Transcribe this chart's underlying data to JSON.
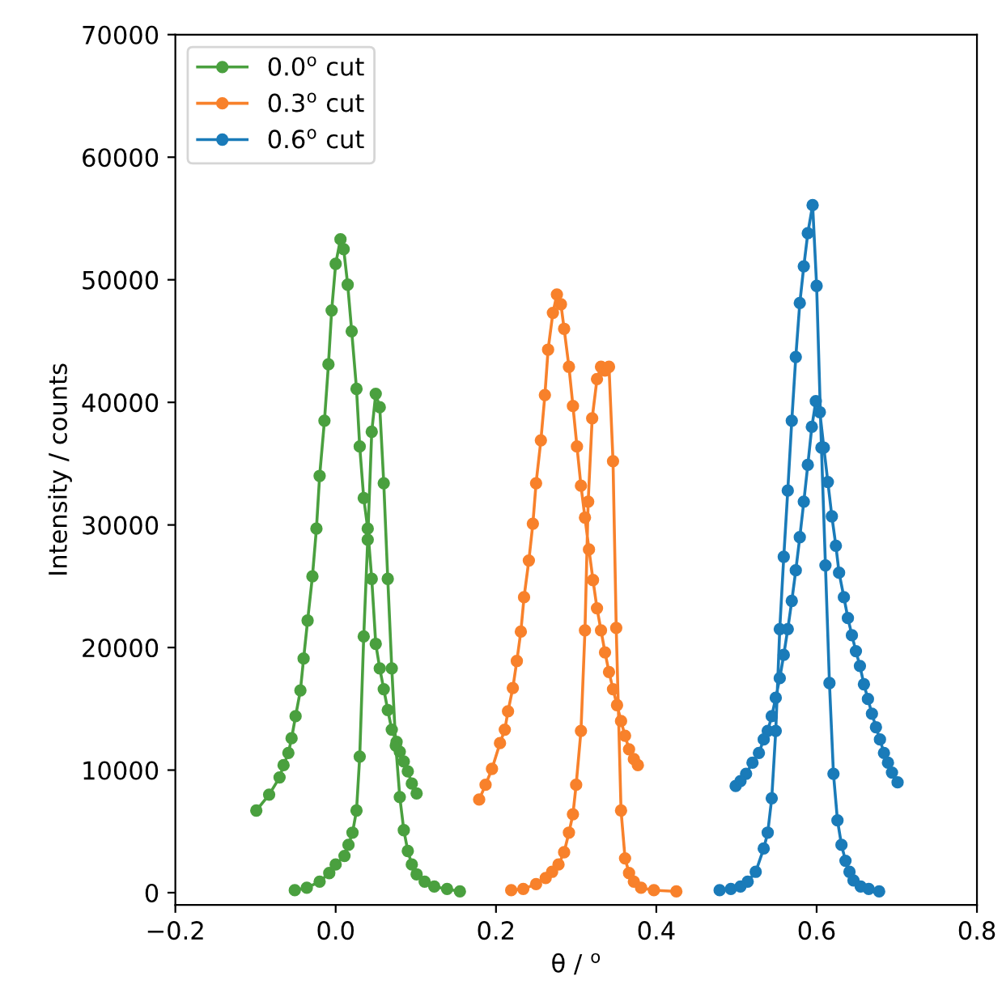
{
  "chart_data": {
    "type": "line",
    "xlabel": "θ / $^{o}$",
    "ylabel": "Intensity / counts",
    "xlim": [
      -0.2,
      0.8
    ],
    "xticks": [
      {
        "value": -0.2,
        "label": "−0.2"
      },
      {
        "value": 0.0,
        "label": "0.0"
      },
      {
        "value": 0.2,
        "label": "0.2"
      },
      {
        "value": 0.4,
        "label": "0.4"
      },
      {
        "value": 0.6,
        "label": "0.6"
      },
      {
        "value": 0.8,
        "label": "0.8"
      }
    ],
    "ylim": [
      -1000,
      70000
    ],
    "yticks": [
      0,
      10000,
      20000,
      30000,
      40000,
      50000,
      60000,
      70000
    ],
    "marker": "circle",
    "legend": "top left",
    "grid": false,
    "series": [
      {
        "name": "0.0$^{o}$ cut",
        "color": "#4aa03f",
        "x": [
          -0.099,
          -0.083,
          -0.07,
          -0.065,
          -0.059,
          -0.055,
          -0.05,
          -0.044,
          -0.04,
          -0.035,
          -0.029,
          -0.024,
          -0.02,
          -0.014,
          -0.009,
          -0.005,
          0.0,
          0.006,
          0.01,
          0.015,
          0.02,
          0.026,
          0.03,
          0.035,
          0.04,
          0.045,
          0.05,
          0.055,
          0.06,
          0.065,
          0.07,
          0.076,
          0.08,
          0.085,
          0.09,
          0.095,
          0.101,
          null,
          -0.051,
          -0.036,
          -0.02,
          -0.008,
          0.0,
          0.011,
          0.016,
          0.021,
          0.026,
          0.03,
          0.035,
          0.04,
          0.045,
          0.05,
          0.055,
          0.06,
          0.065,
          0.07,
          0.075,
          0.08,
          0.085,
          0.09,
          0.095,
          0.101,
          0.111,
          0.123,
          0.139,
          0.155
        ],
        "values": [
          6700,
          8000,
          9400,
          10400,
          11400,
          12600,
          14400,
          16500,
          19100,
          22200,
          25800,
          29700,
          34000,
          38500,
          43100,
          47500,
          51300,
          53300,
          52500,
          49600,
          45800,
          41100,
          36400,
          32200,
          29700,
          25600,
          20300,
          18300,
          16600,
          14900,
          13300,
          12300,
          11500,
          10700,
          9900,
          8900,
          8100,
          null,
          200,
          400,
          900,
          1600,
          2300,
          3000,
          3900,
          4900,
          6700,
          11100,
          20900,
          28800,
          37600,
          40700,
          39600,
          33400,
          25600,
          18300,
          12000,
          7800,
          5100,
          3400,
          2300,
          1500,
          900,
          500,
          300,
          100
        ]
      },
      {
        "name": "0.3$^{o}$ cut",
        "color": "#f8812b",
        "x": [
          0.179,
          0.187,
          0.195,
          0.205,
          0.211,
          0.215,
          0.221,
          0.226,
          0.231,
          0.235,
          0.241,
          0.246,
          0.25,
          0.256,
          0.261,
          0.265,
          0.271,
          0.276,
          0.281,
          0.285,
          0.291,
          0.296,
          0.301,
          0.306,
          0.311,
          0.316,
          0.321,
          0.326,
          0.331,
          0.336,
          0.341,
          0.346,
          0.351,
          0.356,
          0.361,
          0.366,
          0.372,
          0.377,
          null,
          0.219,
          0.234,
          0.25,
          0.262,
          0.27,
          0.278,
          0.285,
          0.291,
          0.296,
          0.3,
          0.306,
          0.311,
          0.315,
          0.32,
          0.326,
          0.331,
          0.336,
          0.341,
          0.346,
          0.35,
          0.356,
          0.361,
          0.366,
          0.372,
          0.381,
          0.397,
          0.425
        ],
        "values": [
          7600,
          8800,
          10100,
          12200,
          13300,
          14800,
          16700,
          18900,
          21300,
          24100,
          27100,
          30100,
          33400,
          36900,
          40600,
          44300,
          47300,
          48800,
          48000,
          46000,
          42900,
          39700,
          36400,
          33200,
          30600,
          28000,
          25500,
          23200,
          21400,
          19600,
          18000,
          16600,
          15300,
          14000,
          12800,
          11700,
          10900,
          10400,
          null,
          200,
          300,
          700,
          1200,
          1700,
          2300,
          3300,
          4900,
          6400,
          8800,
          13200,
          21400,
          31900,
          38700,
          41900,
          42900,
          42600,
          42900,
          35200,
          21600,
          6700,
          2800,
          1600,
          900,
          400,
          200,
          100
        ]
      },
      {
        "name": "0.6$^{o}$ cut",
        "color": "#1a7bb9",
        "x": [
          0.499,
          0.505,
          0.512,
          0.52,
          0.528,
          0.534,
          0.539,
          0.544,
          0.549,
          0.554,
          0.559,
          0.564,
          0.569,
          0.574,
          0.579,
          0.584,
          0.589,
          0.594,
          0.599,
          0.604,
          0.609,
          0.614,
          0.619,
          0.624,
          0.628,
          0.634,
          0.639,
          0.644,
          0.649,
          0.654,
          0.659,
          0.664,
          0.669,
          0.674,
          0.679,
          0.684,
          0.689,
          0.694,
          0.701,
          null,
          0.479,
          0.493,
          0.505,
          0.514,
          0.524,
          0.534,
          0.539,
          0.544,
          0.549,
          0.554,
          0.559,
          0.564,
          0.569,
          0.574,
          0.579,
          0.584,
          0.589,
          0.595,
          0.6,
          0.606,
          0.611,
          0.616,
          0.621,
          0.626,
          0.631,
          0.636,
          0.641,
          0.646,
          0.655,
          0.665,
          0.678
        ],
        "values": [
          8700,
          9100,
          9700,
          10600,
          11400,
          12500,
          13200,
          14400,
          15900,
          17500,
          19400,
          21500,
          23800,
          26300,
          29000,
          31900,
          34900,
          38000,
          40100,
          39200,
          36300,
          33500,
          30700,
          28300,
          26100,
          24100,
          22400,
          21000,
          19700,
          18500,
          17000,
          15800,
          14600,
          13500,
          12500,
          11400,
          10600,
          9800,
          9000,
          null,
          200,
          300,
          500,
          900,
          1700,
          3600,
          4900,
          7700,
          13200,
          21500,
          27400,
          32800,
          38500,
          43700,
          48100,
          51100,
          53800,
          56100,
          49500,
          36300,
          26700,
          17100,
          9700,
          5900,
          3900,
          2600,
          1700,
          1000,
          500,
          300,
          100
        ]
      }
    ]
  }
}
